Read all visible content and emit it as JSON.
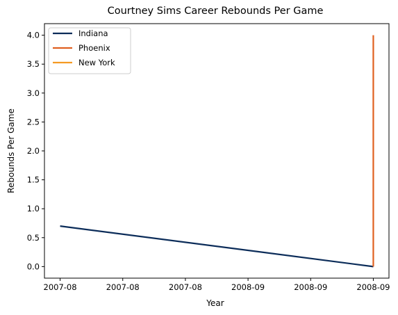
{
  "chart_data": {
    "type": "line",
    "title": "Courtney Sims Career Rebounds Per Game",
    "xlabel": "Year",
    "ylabel": "Rebounds Per Game",
    "x_ticks": [
      "2007-08",
      "2007-08",
      "2007-08",
      "2008-09",
      "2008-09",
      "2008-09"
    ],
    "x_tick_values": [
      0,
      0.2,
      0.4,
      0.6,
      0.8,
      1.0
    ],
    "xlim": [
      -0.05,
      1.05
    ],
    "y_ticks": [
      "0.0",
      "0.5",
      "1.0",
      "1.5",
      "2.0",
      "2.5",
      "3.0",
      "3.5",
      "4.0"
    ],
    "y_tick_values": [
      0,
      0.5,
      1.0,
      1.5,
      2.0,
      2.5,
      3.0,
      3.5,
      4.0
    ],
    "ylim": [
      -0.2,
      4.2
    ],
    "grid": false,
    "legend_position": "top-left",
    "series": [
      {
        "name": "Indiana",
        "color": "#0b2c59",
        "x": [
          0,
          1.0
        ],
        "y": [
          0.7,
          0.0
        ]
      },
      {
        "name": "Phoenix",
        "color": "#e06020",
        "x": [
          1.0,
          1.0
        ],
        "y": [
          0.0,
          4.0
        ]
      },
      {
        "name": "New York",
        "color": "#f59a23",
        "x": [],
        "y": []
      }
    ]
  }
}
